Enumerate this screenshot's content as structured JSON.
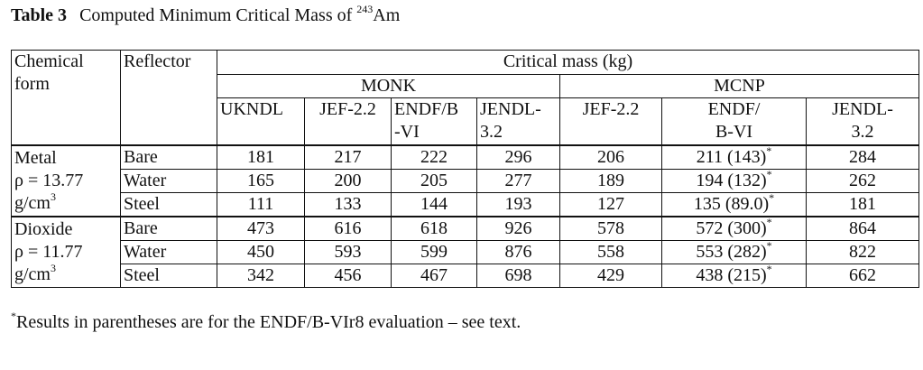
{
  "caption": {
    "label": "Table 3",
    "text": "Computed Minimum Critical Mass of",
    "superscript": "243",
    "element": "Am"
  },
  "table": {
    "chemical_form_header": [
      "Chemical",
      "form"
    ],
    "reflector_header": "Reflector",
    "mass_header": "Critical mass (kg)",
    "codes": [
      {
        "name": "MONK",
        "libraries": [
          [
            "UKNDL"
          ],
          [
            "JEF-2.2"
          ],
          [
            "ENDF/B",
            "-VI"
          ],
          [
            "JENDL-",
            "3.2"
          ]
        ]
      },
      {
        "name": "MCNP",
        "libraries": [
          [
            "JEF-2.2"
          ],
          [
            "ENDF/",
            "B-VI"
          ],
          [
            "JENDL-",
            "3.2"
          ]
        ]
      }
    ],
    "groups": [
      {
        "form": [
          "Metal",
          "ρ = 13.77",
          "g/cm"
        ],
        "form_superscript": "3",
        "rows": [
          {
            "reflector": "Bare",
            "values": [
              181,
              217,
              222,
              296,
              206,
              "211 (143)",
              284
            ],
            "marker": "*"
          },
          {
            "reflector": "Water",
            "values": [
              165,
              200,
              205,
              277,
              189,
              "194 (132)",
              262
            ],
            "marker": "*"
          },
          {
            "reflector": "Steel",
            "values": [
              111,
              133,
              144,
              193,
              127,
              "135 (89.0)",
              181
            ],
            "marker": "*"
          }
        ]
      },
      {
        "form": [
          "Dioxide",
          "ρ = 11.77",
          "g/cm"
        ],
        "form_superscript": "3",
        "rows": [
          {
            "reflector": "Bare",
            "values": [
              473,
              616,
              618,
              926,
              578,
              "572 (300)",
              864
            ],
            "marker": "*"
          },
          {
            "reflector": "Water",
            "values": [
              450,
              593,
              599,
              876,
              558,
              "553 (282)",
              822
            ],
            "marker": "*"
          },
          {
            "reflector": "Steel",
            "values": [
              342,
              456,
              467,
              698,
              429,
              "438 (215)",
              662
            ],
            "marker": "*"
          }
        ]
      }
    ]
  },
  "footnote": {
    "marker": "*",
    "text": "Results in parentheses are for the ENDF/B-VIr8 evaluation – see text."
  }
}
